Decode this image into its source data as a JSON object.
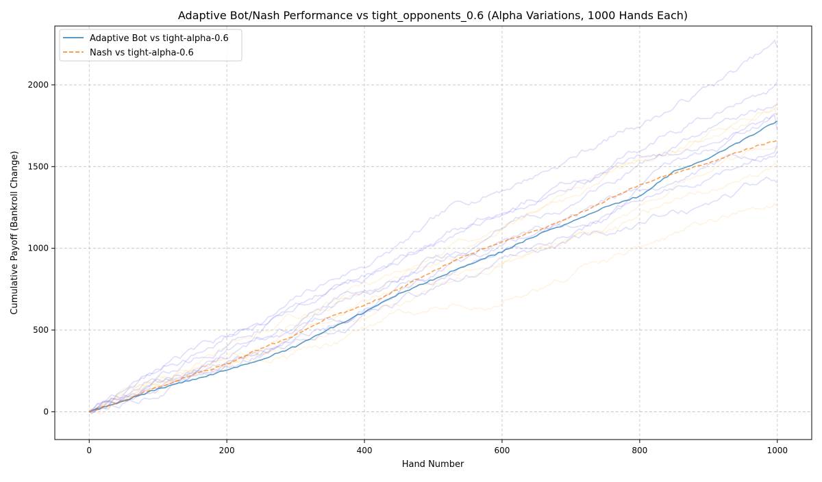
{
  "chart_data": {
    "type": "line",
    "title": "Adaptive Bot/Nash Performance vs  tight_opponents_0.6 (Alpha Variations, 1000 Hands Each)",
    "xlabel": "Hand Number",
    "ylabel": "Cumulative Payoff (Bankroll Change)",
    "xlim": [
      -50,
      1050
    ],
    "ylim": [
      -170,
      2360
    ],
    "xticks": [
      0,
      200,
      400,
      600,
      800,
      1000
    ],
    "yticks": [
      0,
      500,
      1000,
      1500,
      2000
    ],
    "grid": true,
    "legend_position": "upper-left",
    "series": [
      {
        "name": "Adaptive Bot vs tight-alpha-0.6",
        "color": "#1f77b4",
        "linestyle": "solid",
        "x": [
          0,
          50,
          100,
          150,
          200,
          250,
          300,
          350,
          400,
          450,
          500,
          550,
          600,
          650,
          700,
          750,
          800,
          850,
          900,
          950,
          1000
        ],
        "y": [
          0,
          68,
          140,
          195,
          255,
          320,
          400,
          510,
          610,
          720,
          810,
          900,
          980,
          1080,
          1160,
          1250,
          1320,
          1470,
          1550,
          1660,
          1780
        ]
      },
      {
        "name": "Nash vs tight-alpha-0.6",
        "color": "#ff7f0e",
        "linestyle": "dashed",
        "x": [
          0,
          50,
          100,
          150,
          200,
          250,
          300,
          350,
          400,
          450,
          500,
          550,
          600,
          650,
          700,
          750,
          800,
          850,
          900,
          950,
          1000
        ],
        "y": [
          0,
          70,
          150,
          225,
          290,
          390,
          470,
          580,
          650,
          750,
          860,
          960,
          1040,
          1110,
          1190,
          1290,
          1390,
          1460,
          1520,
          1600,
          1660
        ]
      }
    ],
    "background_runs": {
      "blue_color": "#6a6af0",
      "orange_color": "#ffc870",
      "blue_final_values": [
        2230,
        2020,
        1880,
        1820,
        1720,
        1640,
        1590,
        1400
      ],
      "orange_final_values": [
        1900,
        1800,
        1600,
        1500,
        1260
      ]
    }
  }
}
